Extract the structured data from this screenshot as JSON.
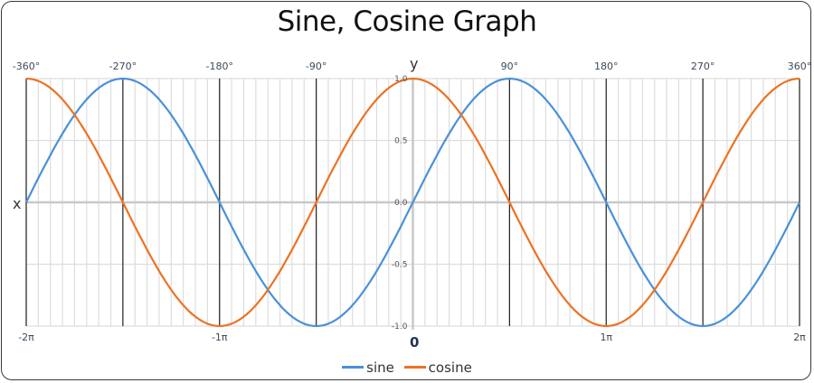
{
  "title": "Sine, Cosine Graph",
  "axes": {
    "x_name": "x",
    "y_name": "y",
    "origin_label": "0",
    "degree_labels": [
      "-360°",
      "-270°",
      "-180°",
      "-90°",
      "90°",
      "180°",
      "270°",
      "360°"
    ],
    "radian_labels": [
      "-2π",
      "-1π",
      "1π",
      "2π"
    ],
    "y_ticks": [
      "1.0",
      "0.5",
      "0.0",
      "-0.5",
      "-1.0"
    ]
  },
  "legend": {
    "items": [
      {
        "label": "sine",
        "color": "#4a90d9"
      },
      {
        "label": "cosine",
        "color": "#ed7222"
      }
    ]
  },
  "colors": {
    "sine": "#4a90d9",
    "cosine": "#ed7222",
    "major_grid": "#222222",
    "minor_grid": "#dddddd",
    "axis": "#c8c8c8"
  },
  "chart_data": {
    "type": "line",
    "title": "Sine, Cosine Graph",
    "xlabel": "x",
    "ylabel": "y",
    "xlim_degrees": [
      -360,
      360
    ],
    "ylim": [
      -1.0,
      1.0
    ],
    "x_ticks_degrees": [
      -360,
      -270,
      -180,
      -90,
      90,
      180,
      270,
      360
    ],
    "x_ticks_radians": [
      "-2π",
      "-1π",
      "1π",
      "2π"
    ],
    "y_ticks": [
      1.0,
      0.5,
      0.0,
      -0.5,
      -1.0
    ],
    "grid": true,
    "minor_x_step_degrees": 11.25,
    "legend_position": "bottom",
    "x_degrees": [
      -360,
      -315,
      -270,
      -225,
      -180,
      -135,
      -90,
      -45,
      0,
      45,
      90,
      135,
      180,
      225,
      270,
      315,
      360
    ],
    "series": [
      {
        "name": "sine",
        "color": "#4a90d9",
        "values": [
          0,
          0.707,
          1,
          0.707,
          0,
          -0.707,
          -1,
          -0.707,
          0,
          0.707,
          1,
          0.707,
          0,
          -0.707,
          -1,
          -0.707,
          0
        ]
      },
      {
        "name": "cosine",
        "color": "#ed7222",
        "values": [
          1,
          0.707,
          0,
          -0.707,
          -1,
          -0.707,
          0,
          0.707,
          1,
          0.707,
          0,
          -0.707,
          -1,
          -0.707,
          0,
          0.707,
          1
        ]
      }
    ]
  }
}
